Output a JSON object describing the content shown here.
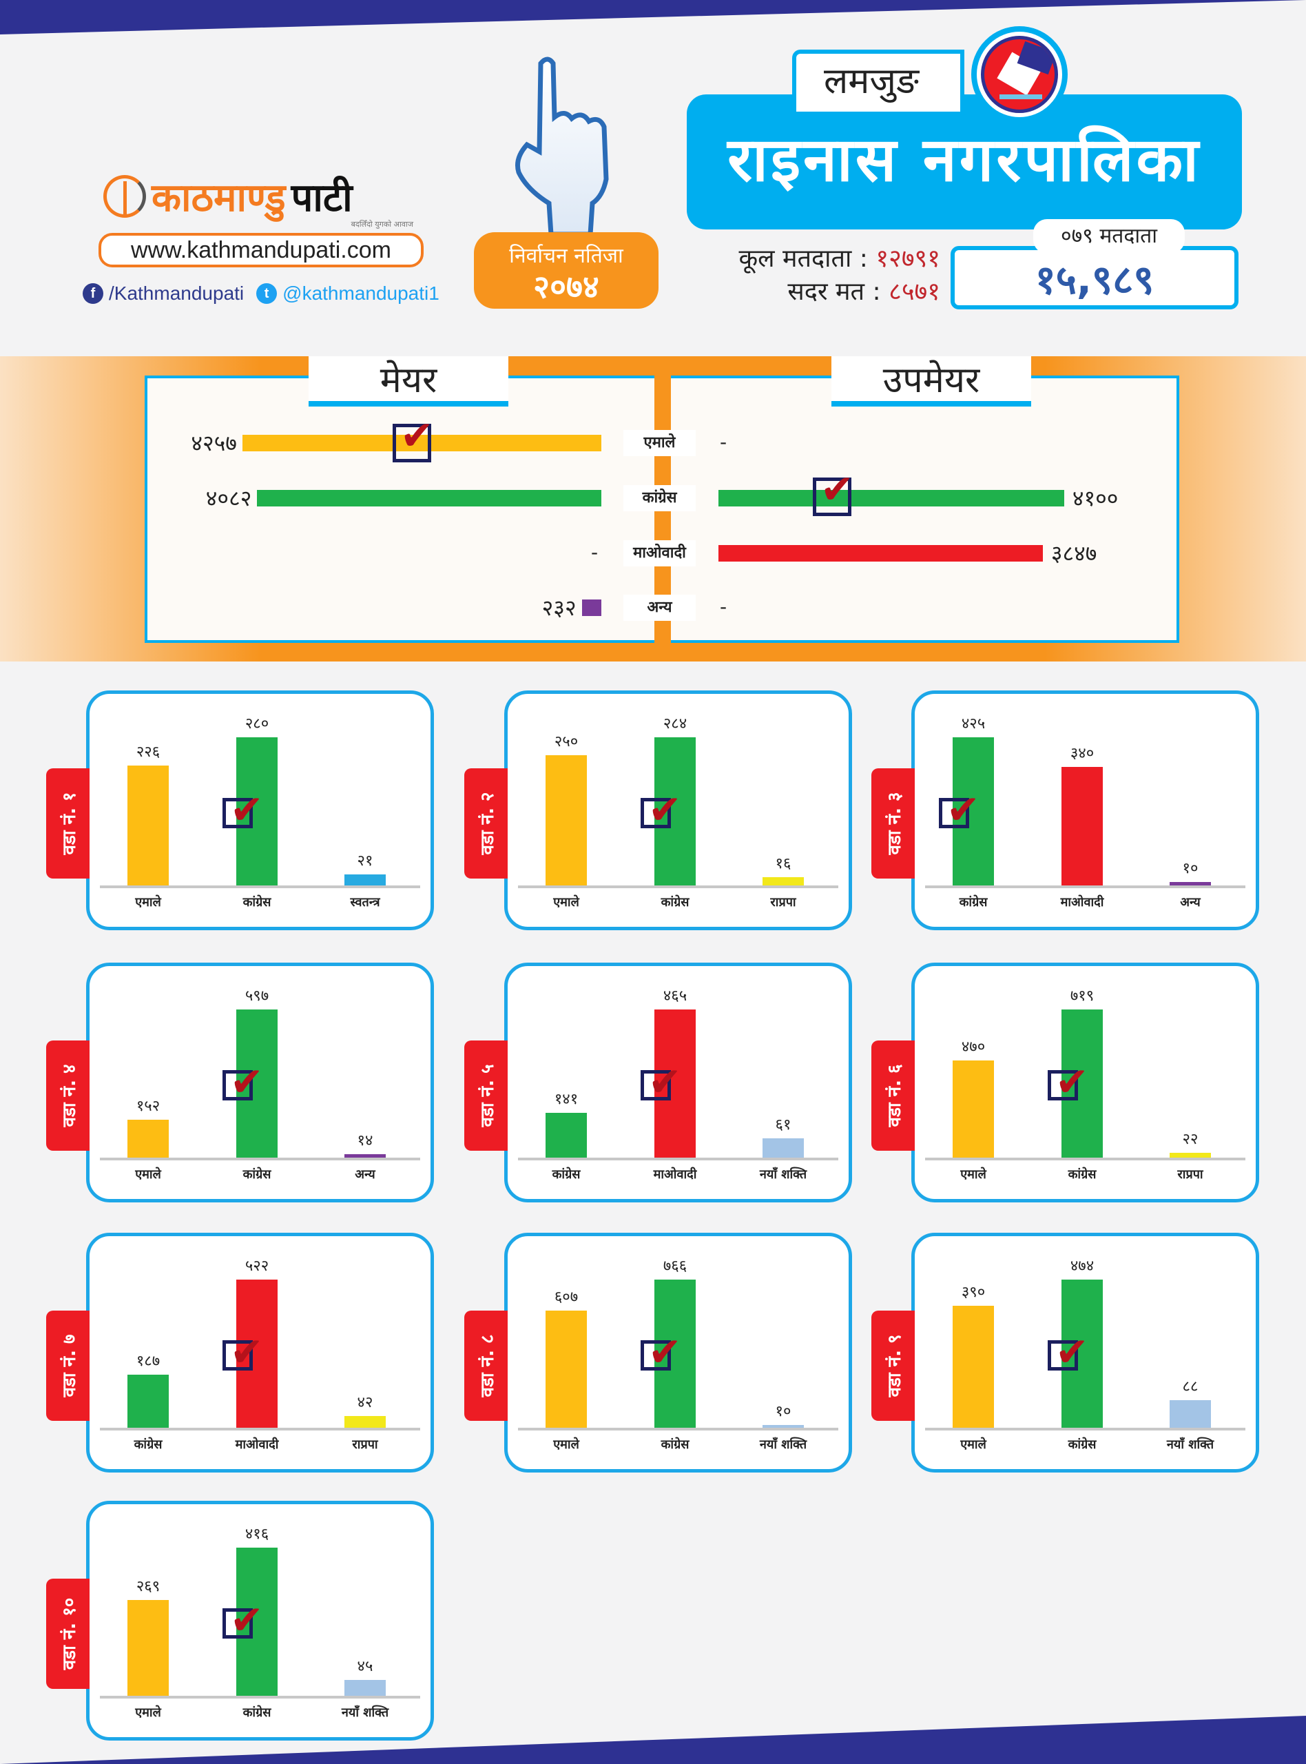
{
  "brand": {
    "logo_part1": "काठमाण्डु",
    "logo_part2": "पाटी",
    "tagline": "बदलिँदो युगको आवाज",
    "url": "www.kathmandupati.com",
    "facebook": "/Kathmandupati",
    "twitter": "@kathmandupati1"
  },
  "badge": {
    "line1": "निर्वाचन नतिजा",
    "line2": "२०७४"
  },
  "header": {
    "district": "लमजुङ",
    "municipality": "राइनास नगरपालिका"
  },
  "stats": {
    "total_voters_label": "कूल मतदाता",
    "total_voters": "१२७९१",
    "valid_votes_label": "सदर मत",
    "valid_votes": "८५७१",
    "sep": ":"
  },
  "voters_079": {
    "label": "०७९ मतदाता",
    "value": "१५,९८९"
  },
  "colors": {
    "एमाले": "#fdbd13",
    "कांग्रेस": "#1fb14c",
    "माओवादी": "#ed1c24",
    "अन्य": "#7a3a9a",
    "स्वतन्त्र": "#27aae1",
    "राप्रपा": "#f2e81a",
    "नयाँ शक्ति": "#a3c4e6"
  },
  "chart_data": [
    {
      "type": "bar",
      "title": "मेयर",
      "categories": [
        "एमाले",
        "कांग्रेस",
        "माओवादी",
        "अन्य"
      ],
      "values": [
        4257,
        4082,
        null,
        232
      ],
      "labels": [
        "४२५७",
        "४०८२",
        "-",
        "२३२"
      ],
      "winner": "एमाले"
    },
    {
      "type": "bar",
      "title": "उपमेयर",
      "categories": [
        "एमाले",
        "कांग्रेस",
        "माओवादी",
        "अन्य"
      ],
      "values": [
        null,
        4100,
        3847,
        null
      ],
      "labels": [
        "-",
        "४१००",
        "३८४७",
        "-"
      ],
      "winner": "कांग्रेस"
    },
    {
      "type": "bar",
      "title": "वडा नं. १",
      "categories": [
        "एमाले",
        "कांग्रेस",
        "स्वतन्त्र"
      ],
      "values": [
        226,
        280,
        21
      ],
      "labels": [
        "२२६",
        "२८०",
        "२१"
      ],
      "winner": 1
    },
    {
      "type": "bar",
      "title": "वडा नं. २",
      "categories": [
        "एमाले",
        "कांग्रेस",
        "राप्रपा"
      ],
      "values": [
        250,
        284,
        16
      ],
      "labels": [
        "२५०",
        "२८४",
        "१६"
      ],
      "winner": 1
    },
    {
      "type": "bar",
      "title": "वडा नं. ३",
      "categories": [
        "कांग्रेस",
        "माओवादी",
        "अन्य"
      ],
      "values": [
        425,
        340,
        10
      ],
      "labels": [
        "४२५",
        "३४०",
        "१०"
      ],
      "winner": 0
    },
    {
      "type": "bar",
      "title": "वडा नं. ४",
      "categories": [
        "एमाले",
        "कांग्रेस",
        "अन्य"
      ],
      "values": [
        152,
        597,
        14
      ],
      "labels": [
        "१५२",
        "५९७",
        "१४"
      ],
      "winner": 1
    },
    {
      "type": "bar",
      "title": "वडा नं. ५",
      "categories": [
        "कांग्रेस",
        "माओवादी",
        "नयाँ शक्ति"
      ],
      "values": [
        141,
        465,
        61
      ],
      "labels": [
        "१४१",
        "४६५",
        "६१"
      ],
      "winner": 1
    },
    {
      "type": "bar",
      "title": "वडा नं. ६",
      "categories": [
        "एमाले",
        "कांग्रेस",
        "राप्रपा"
      ],
      "values": [
        470,
        719,
        22
      ],
      "labels": [
        "४७०",
        "७१९",
        "२२"
      ],
      "winner": 1
    },
    {
      "type": "bar",
      "title": "वडा नं. ७",
      "categories": [
        "कांग्रेस",
        "माओवादी",
        "राप्रपा"
      ],
      "values": [
        187,
        522,
        42
      ],
      "labels": [
        "१८७",
        "५२२",
        "४२"
      ],
      "winner": 1
    },
    {
      "type": "bar",
      "title": "वडा नं. ८",
      "categories": [
        "एमाले",
        "कांग्रेस",
        "नयाँ शक्ति"
      ],
      "values": [
        607,
        766,
        10
      ],
      "labels": [
        "६०७",
        "७६६",
        "१०"
      ],
      "winner": 1
    },
    {
      "type": "bar",
      "title": "वडा नं. ९",
      "categories": [
        "एमाले",
        "कांग्रेस",
        "नयाँ शक्ति"
      ],
      "values": [
        390,
        474,
        88
      ],
      "labels": [
        "३९०",
        "४७४",
        "८८"
      ],
      "winner": 1
    },
    {
      "type": "bar",
      "title": "वडा नं. १०",
      "categories": [
        "एमाले",
        "कांग्रेस",
        "नयाँ शक्ति"
      ],
      "values": [
        269,
        416,
        45
      ],
      "labels": [
        "२६९",
        "४१६",
        "४५"
      ],
      "winner": 1
    }
  ]
}
